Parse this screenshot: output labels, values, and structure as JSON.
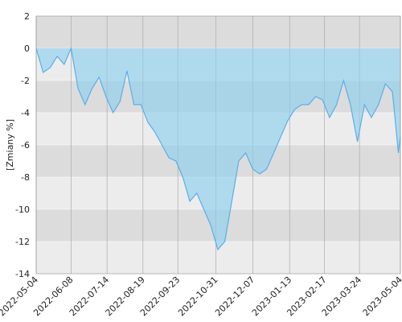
{
  "chart_data": {
    "type": "area",
    "y_label": "[Zmiany %]",
    "x": [
      "2022-05-04",
      "2022-05-11",
      "2022-05-18",
      "2022-05-25",
      "2022-06-01",
      "2022-06-08",
      "2022-06-15",
      "2022-06-22",
      "2022-06-29",
      "2022-07-06",
      "2022-07-13",
      "2022-07-20",
      "2022-07-27",
      "2022-08-03",
      "2022-08-10",
      "2022-08-17",
      "2022-08-24",
      "2022-08-31",
      "2022-09-07",
      "2022-09-14",
      "2022-09-21",
      "2022-09-28",
      "2022-10-05",
      "2022-10-12",
      "2022-10-19",
      "2022-10-26",
      "2022-11-02",
      "2022-11-09",
      "2022-11-16",
      "2022-11-23",
      "2022-11-30",
      "2022-12-07",
      "2022-12-14",
      "2022-12-21",
      "2022-12-28",
      "2023-01-04",
      "2023-01-11",
      "2023-01-18",
      "2023-01-25",
      "2023-02-01",
      "2023-02-08",
      "2023-02-15",
      "2023-02-22",
      "2023-03-01",
      "2023-03-08",
      "2023-03-15",
      "2023-03-22",
      "2023-03-29",
      "2023-04-05",
      "2023-04-12",
      "2023-04-19",
      "2023-04-26",
      "2023-05-02",
      "2023-05-04"
    ],
    "series": [
      {
        "name": "Zmiany",
        "color": "#5aaee8",
        "fill": "rgba(135,206,240,0.6)",
        "values": [
          0,
          -1.5,
          -1.2,
          -0.5,
          -1.0,
          0,
          -2.5,
          -3.5,
          -2.5,
          -1.8,
          -3.0,
          -4.0,
          -3.3,
          -1.4,
          -3.5,
          -3.5,
          -4.6,
          -5.2,
          -6.0,
          -6.8,
          -7.0,
          -8.0,
          -9.5,
          -9.0,
          -10.0,
          -11.0,
          -12.5,
          -12.0,
          -9.5,
          -7.0,
          -6.5,
          -7.5,
          -7.8,
          -7.5,
          -6.5,
          -5.5,
          -4.5,
          -3.8,
          -3.5,
          -3.5,
          -3.0,
          -3.2,
          -4.3,
          -3.5,
          -2.0,
          -3.5,
          -5.8,
          -3.5,
          -4.3,
          -3.5,
          -2.2,
          -2.7,
          -6.5,
          -5.5
        ]
      }
    ],
    "ylim": [
      -14,
      2
    ],
    "yticks": [
      -14,
      -12,
      -10,
      -8,
      -6,
      -4,
      -2,
      0,
      2
    ],
    "xlim": [
      "2022-05-04",
      "2023-05-04"
    ],
    "xticks": [
      "2022-05-04",
      "2022-06-08",
      "2022-07-14",
      "2022-08-19",
      "2022-09-23",
      "2022-10-31",
      "2022-12-07",
      "2023-01-13",
      "2023-02-17",
      "2023-03-24",
      "2023-05-04"
    ],
    "grid": true
  }
}
